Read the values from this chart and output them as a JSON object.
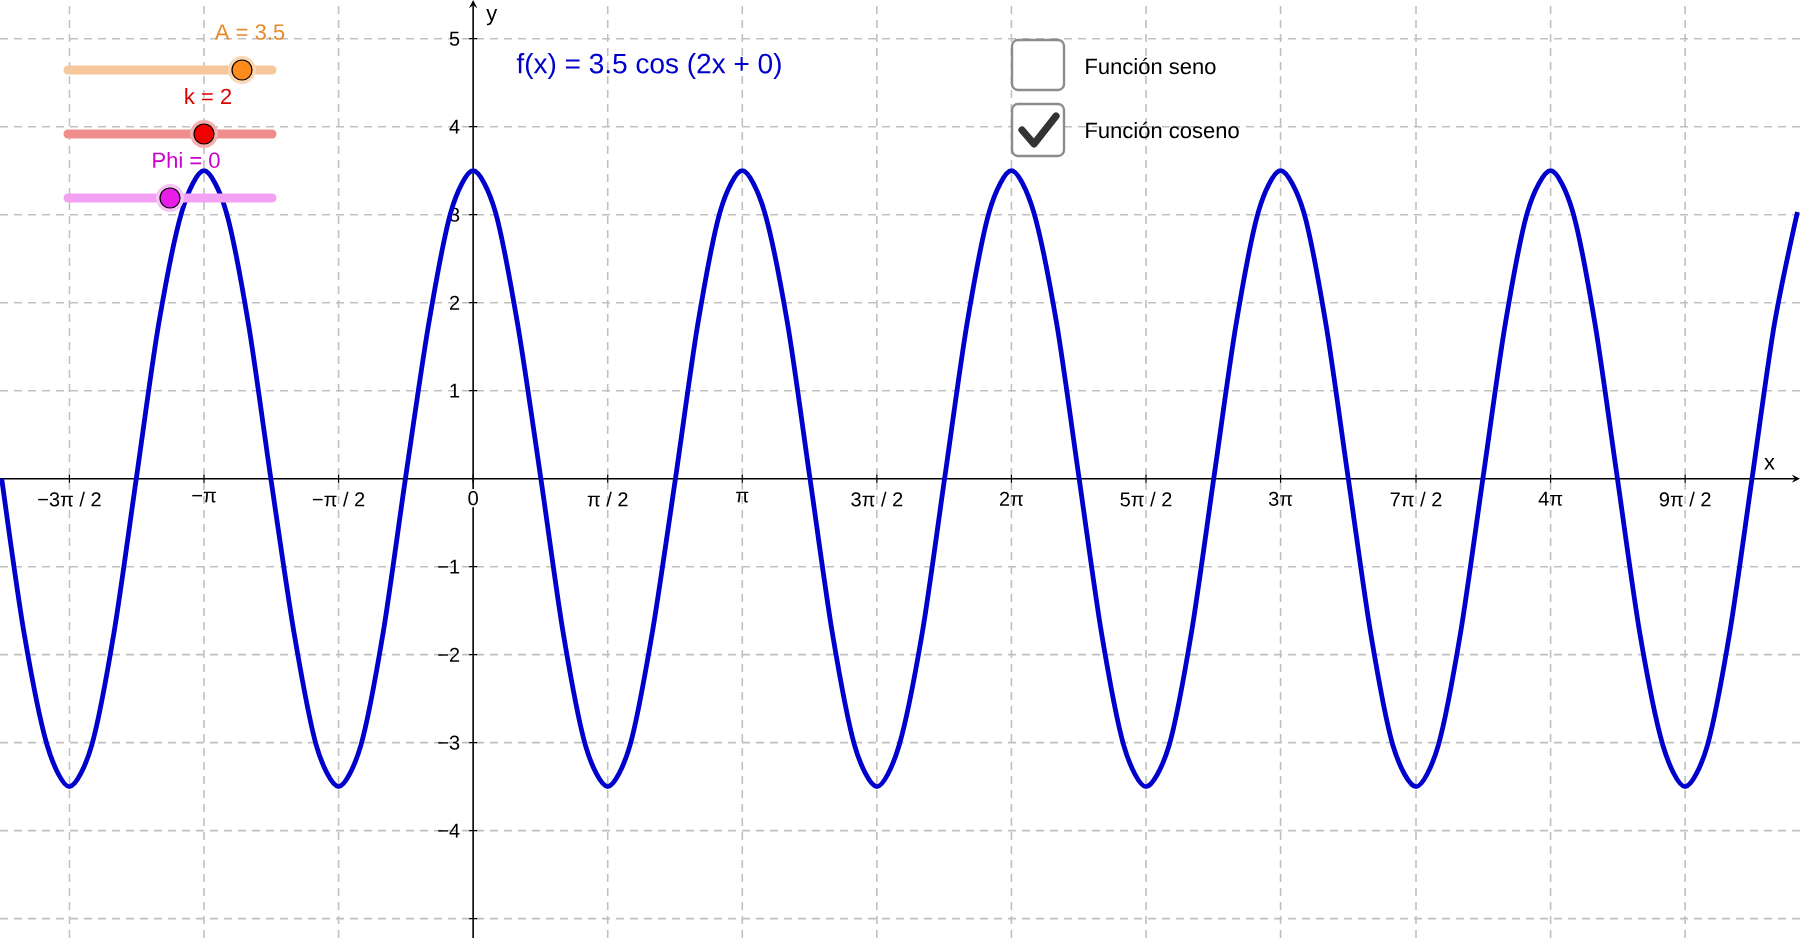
{
  "chart_data": {
    "type": "line",
    "xlabel": "x",
    "ylabel": "y",
    "annotations": [
      "f(x) = 3.5 cos (2x + 0)",
      "A = 3.5",
      "k = 2",
      "Phi = 0",
      "Función seno",
      "Función coseno"
    ],
    "x": [
      -5.5,
      -5.24,
      -4.97,
      -4.71,
      -4.45,
      -4.19,
      -3.93,
      -3.67,
      -3.4,
      -3.14,
      -2.88,
      -2.62,
      -2.36,
      -2.09,
      -1.83,
      -1.57,
      -1.31,
      -1.05,
      -0.79,
      -0.52,
      -0.26,
      0,
      0.26,
      0.52,
      0.79,
      1.05,
      1.31,
      1.57,
      1.83,
      2.09,
      2.36,
      2.62,
      2.88,
      3.14,
      3.4,
      3.67,
      3.93,
      4.19,
      4.45,
      4.71,
      4.97,
      5.24,
      5.5,
      5.76,
      6.02,
      6.28,
      6.54,
      6.81,
      7.07,
      7.33,
      7.59,
      7.85,
      8.12,
      8.38,
      8.64,
      8.9,
      9.16,
      9.42,
      9.69,
      9.95,
      10.21,
      10.47,
      10.73,
      11.0,
      11.26,
      11.52,
      11.78,
      12.04,
      12.3,
      12.57,
      12.83,
      13.09,
      13.35,
      13.61,
      13.88,
      14.14,
      14.4,
      14.66,
      14.92,
      15.18,
      15.45
    ],
    "series": [
      {
        "color": "#0000cc",
        "values": [
          0,
          -1.75,
          -3.03,
          -3.5,
          -3.03,
          -1.75,
          0,
          1.75,
          3.03,
          3.5,
          3.03,
          1.75,
          0,
          -1.75,
          -3.03,
          -3.5,
          -3.03,
          -1.75,
          0,
          1.75,
          3.03,
          3.5,
          3.03,
          1.75,
          0,
          -1.75,
          -3.03,
          -3.5,
          -3.03,
          -1.75,
          0,
          1.75,
          3.03,
          3.5,
          3.03,
          1.75,
          0,
          -1.75,
          -3.03,
          -3.5,
          -3.03,
          -1.75,
          0,
          1.75,
          3.03,
          3.5,
          3.03,
          1.75,
          0,
          -1.75,
          -3.03,
          -3.5,
          -3.03,
          -1.75,
          0,
          1.75,
          3.03,
          3.5,
          3.03,
          1.75,
          0,
          -1.75,
          -3.03,
          -3.5,
          -3.03,
          -1.75,
          0,
          1.75,
          3.03,
          3.5,
          3.03,
          1.75,
          0,
          -1.75,
          -3.03,
          -3.5,
          -3.03,
          -1.75,
          0,
          1.75,
          3.03
        ]
      }
    ],
    "xlim": [
      -5.52,
      15.48
    ],
    "ylim": [
      -5.22,
      5.44
    ],
    "xticks": [
      {
        "value": -4.71,
        "label": "−3π / 2"
      },
      {
        "value": -3.14,
        "label": "−π"
      },
      {
        "value": -1.57,
        "label": "−π / 2"
      },
      0,
      {
        "value": 1.57,
        "label": "π / 2"
      },
      {
        "value": 3.14,
        "label": "π"
      },
      {
        "value": 4.71,
        "label": "3π / 2"
      },
      {
        "value": 6.28,
        "label": "2π"
      },
      {
        "value": 7.85,
        "label": "5π / 2"
      },
      {
        "value": 9.42,
        "label": "3π"
      },
      {
        "value": 11.0,
        "label": "7π / 2"
      },
      {
        "value": 12.57,
        "label": "4π"
      },
      {
        "value": 14.14,
        "label": "9π / 2"
      }
    ],
    "yticks": [
      {
        "value": -5,
        "label": null
      },
      {
        "value": -4,
        "label": "−4"
      },
      {
        "value": -3,
        "label": "−3"
      },
      {
        "value": -2,
        "label": "−2"
      },
      {
        "value": -1,
        "label": "−1"
      },
      1,
      2,
      3,
      4,
      5
    ],
    "grid": true
  }
}
